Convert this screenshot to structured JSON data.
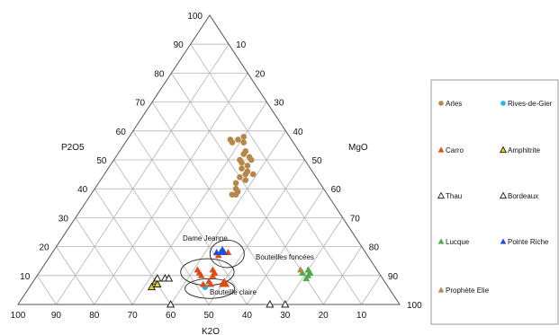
{
  "chart_data": {
    "type": "scatter",
    "subtype": "ternary",
    "axes": {
      "top_apex": "MgO",
      "left_apex": "P2O5",
      "bottom_label": "K2O",
      "left_side_label": "P2O5",
      "right_side_label": "MgO"
    },
    "axis_labels": {
      "left": "P2O5",
      "right": "MgO",
      "bottom": "K2O"
    },
    "ticks": {
      "left_side": [
        "100",
        "90",
        "80",
        "70",
        "60",
        "50",
        "40",
        "30",
        "20",
        "10"
      ],
      "right_side": [
        "10",
        "20",
        "30",
        "40",
        "50",
        "60",
        "70",
        "80",
        "90",
        "100"
      ],
      "bottom": [
        "100",
        "90",
        "80",
        "70",
        "60",
        "50",
        "40",
        "30",
        "20",
        "10"
      ]
    },
    "grid": true,
    "annotations": [
      {
        "text": "Dame Jeanne",
        "anchor": [
          48,
          19
        ]
      },
      {
        "text": "Bouteilles foncées",
        "anchor": [
          40,
          13
        ]
      },
      {
        "text": "Bouteille claire",
        "anchor": [
          47,
          6
        ]
      }
    ],
    "ellipses": [
      {
        "name": "dame-jeanne",
        "center": [
          46,
          17.5
        ],
        "rx": 4.5,
        "ry": 3.6
      },
      {
        "name": "bouteilles-foncees",
        "center": [
          44,
          11.2
        ],
        "rx": 7.0,
        "ry": 3.5
      },
      {
        "name": "bouteille-claire",
        "center": [
          47.5,
          5.5
        ],
        "rx": 6.5,
        "ry": 2.6
      }
    ],
    "legend_position": "right",
    "series": [
      {
        "name": "Arles",
        "marker": "circle",
        "color": "#b8864a",
        "points": [
          [
            29,
            57
          ],
          [
            30,
            58
          ],
          [
            28,
            56
          ],
          [
            27,
            57
          ],
          [
            31,
            56
          ],
          [
            33,
            53
          ],
          [
            33,
            52
          ],
          [
            35,
            51
          ],
          [
            33,
            50
          ],
          [
            36,
            50
          ],
          [
            34,
            49
          ],
          [
            36,
            48
          ],
          [
            35,
            47
          ],
          [
            37,
            46
          ],
          [
            37,
            45
          ],
          [
            36,
            44
          ],
          [
            38,
            43
          ],
          [
            36,
            42
          ],
          [
            37,
            40
          ],
          [
            38,
            39
          ],
          [
            37,
            38
          ],
          [
            38,
            38
          ],
          [
            39,
            45
          ]
        ]
      },
      {
        "name": "Rives-de-Gier",
        "marker": "circle",
        "color": "#1fb8e6",
        "points": [
          [
            46,
            6
          ]
        ]
      },
      {
        "name": "Carro",
        "marker": "triangle",
        "color": "#e04a14",
        "points": [
          [
            46,
            18
          ],
          [
            44,
            17
          ],
          [
            42,
            11
          ],
          [
            41,
            12
          ],
          [
            45,
            12
          ],
          [
            46,
            10
          ],
          [
            46,
            11
          ],
          [
            43,
            10
          ],
          [
            50,
            7
          ],
          [
            51,
            7
          ],
          [
            50,
            8
          ],
          [
            47,
            7
          ],
          [
            45,
            7
          ],
          [
            46,
            8
          ]
        ]
      },
      {
        "name": "Amphitrite",
        "marker": "triangle",
        "color": "#e6d21e",
        "outline": "#222222",
        "points": [
          [
            32,
            8
          ],
          [
            33,
            7
          ],
          [
            32,
            6
          ]
        ]
      },
      {
        "name": "Thau",
        "marker": "triangle",
        "color": "#ffffff",
        "outline": "#222222",
        "points": [
          [
            70,
            0
          ],
          [
            66,
            0
          ]
        ]
      },
      {
        "name": "Bordeaux",
        "marker": "triangle",
        "color": "#ffffff",
        "outline": "#222222",
        "points": [
          [
            34,
            9
          ],
          [
            35,
            9
          ],
          [
            32,
            9
          ],
          [
            40,
            0
          ]
        ]
      },
      {
        "name": "Lucque",
        "marker": "triangle",
        "color": "#4cab4c",
        "points": [
          [
            71,
            11
          ],
          [
            71,
            10
          ],
          [
            71,
            9
          ],
          [
            70,
            12
          ],
          [
            69,
            11
          ]
        ]
      },
      {
        "name": "Pointe Riche",
        "marker": "triangle",
        "color": "#1f4fd8",
        "points": [
          [
            43,
            18
          ],
          [
            44,
            18
          ],
          [
            44,
            19
          ],
          [
            45,
            18
          ]
        ]
      },
      {
        "name": "Prophète Elie",
        "marker": "triangle",
        "color": "#b8864a",
        "points": [
          [
            68,
            12
          ]
        ]
      }
    ]
  }
}
